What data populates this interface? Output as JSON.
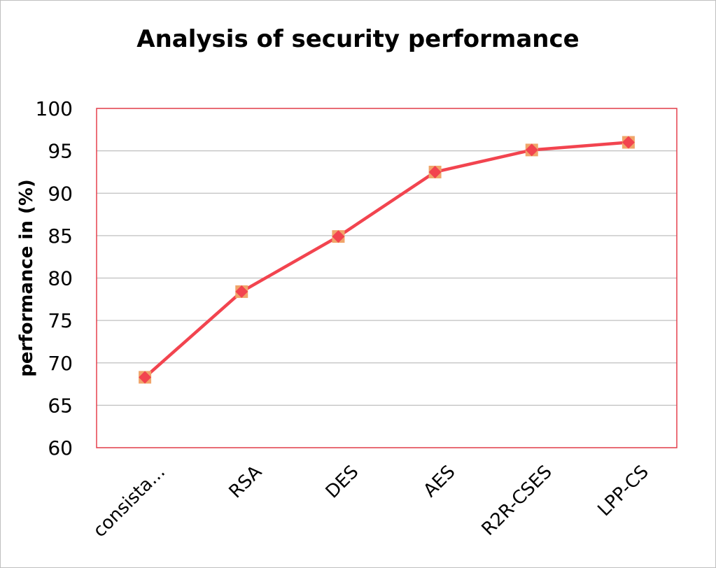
{
  "chart_data": {
    "type": "line",
    "title": "Analysis of security performance",
    "xlabel": "",
    "ylabel": "performance in (%)",
    "categories": [
      "consista...",
      "RSA",
      "DES",
      "AES",
      "R2R-CSES",
      "LPP-CS"
    ],
    "series": [
      {
        "values": [
          68.3,
          78.4,
          84.9,
          92.5,
          95.1,
          96.0
        ]
      }
    ],
    "ylim": [
      60,
      100
    ],
    "yticks": [
      60,
      65,
      70,
      75,
      80,
      85,
      90,
      95,
      100
    ],
    "grid": true,
    "legend": "none",
    "colors": {
      "line": "#f2444f",
      "marker_square": "#f0a56a",
      "marker_diamond": "#f2444f",
      "plot_border": "#e6404d",
      "grid": "#bfbfbf"
    }
  }
}
